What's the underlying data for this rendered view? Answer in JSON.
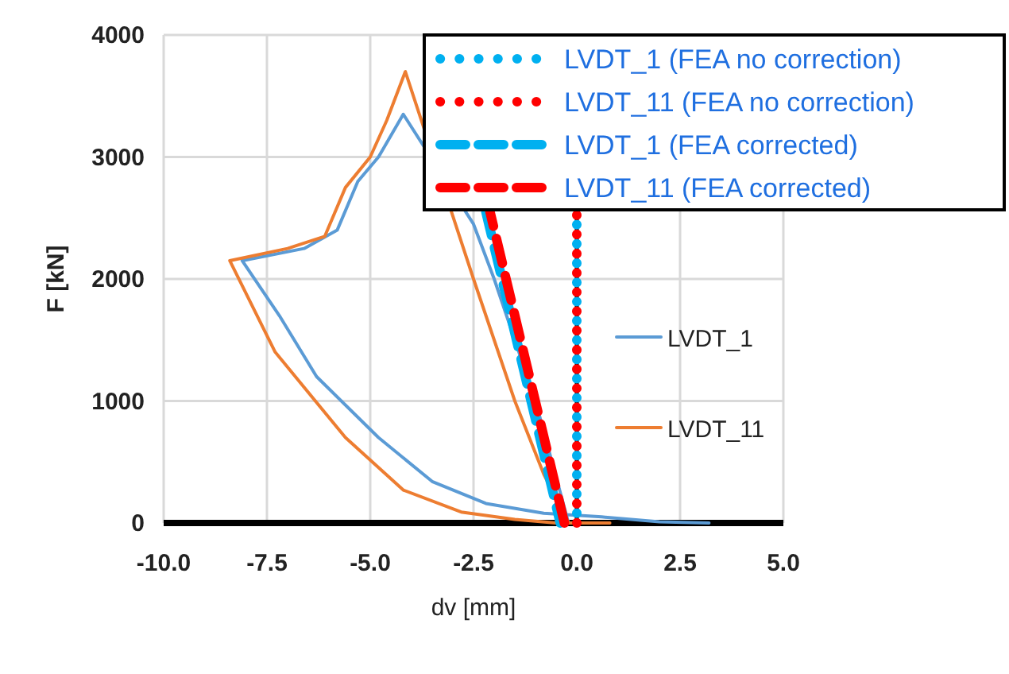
{
  "chart_data": {
    "type": "line",
    "xlabel": "dv [mm]",
    "ylabel": "F [kN]",
    "xlim": [
      -10,
      5
    ],
    "ylim": [
      0,
      4000
    ],
    "xticks": [
      {
        "value": -10,
        "label": "-10.0"
      },
      {
        "value": -7.5,
        "label": "-7.5"
      },
      {
        "value": -5,
        "label": "-5.0"
      },
      {
        "value": -2.5,
        "label": "-2.5"
      },
      {
        "value": 0,
        "label": "0.0"
      },
      {
        "value": 2.5,
        "label": "2.5"
      },
      {
        "value": 5,
        "label": "5.0"
      }
    ],
    "yticks": [
      0,
      1000,
      2000,
      3000,
      4000
    ],
    "grid": true,
    "legend": "top right",
    "series": [
      {
        "name": "LVDT_1",
        "color": "#5b9bd5",
        "line_style": "solid",
        "x": [
          -0.2,
          -1.0,
          -2.0,
          -2.5,
          -4.2,
          -4.8,
          -5.3,
          -5.8,
          -6.6,
          -8.1,
          -7.2,
          -6.3,
          -4.8,
          -3.5,
          -2.2,
          -0.8,
          0.6,
          2.0,
          3.2
        ],
        "values": [
          0,
          1000,
          2000,
          2450,
          3350,
          3000,
          2800,
          2400,
          2250,
          2150,
          1700,
          1200,
          700,
          340,
          160,
          80,
          50,
          10,
          0
        ]
      },
      {
        "name": "LVDT_11",
        "color": "#ed7d31",
        "line_style": "solid",
        "x": [
          -0.2,
          -0.8,
          -1.5,
          -2.5,
          -4.15,
          -4.6,
          -5.0,
          -5.6,
          -6.1,
          -7.0,
          -8.4,
          -7.3,
          -5.6,
          -4.2,
          -2.8,
          -1.5,
          -0.5,
          0.8
        ],
        "values": [
          0,
          400,
          1000,
          2000,
          3700,
          3300,
          3000,
          2750,
          2350,
          2250,
          2150,
          1400,
          700,
          270,
          90,
          30,
          0,
          0
        ]
      },
      {
        "name": "LVDT_1 (FEA no correction)",
        "color": "#00b0f0",
        "line_style": "dotted",
        "x": [
          0,
          0
        ],
        "values": [
          0,
          2550
        ]
      },
      {
        "name": "LVDT_11 (FEA no correction)",
        "color": "#ff0000",
        "line_style": "dotted",
        "x": [
          0,
          0
        ],
        "values": [
          0,
          2550
        ]
      },
      {
        "name": "LVDT_1 (FEA corrected)",
        "color": "#00b0f0",
        "line_style": "dashed",
        "x": [
          -0.4,
          -2.2
        ],
        "values": [
          0,
          2550
        ]
      },
      {
        "name": "LVDT_11 (FEA corrected)",
        "color": "#ff0000",
        "line_style": "dashed",
        "x": [
          -0.3,
          -2.1
        ],
        "values": [
          0,
          2550
        ]
      }
    ]
  }
}
